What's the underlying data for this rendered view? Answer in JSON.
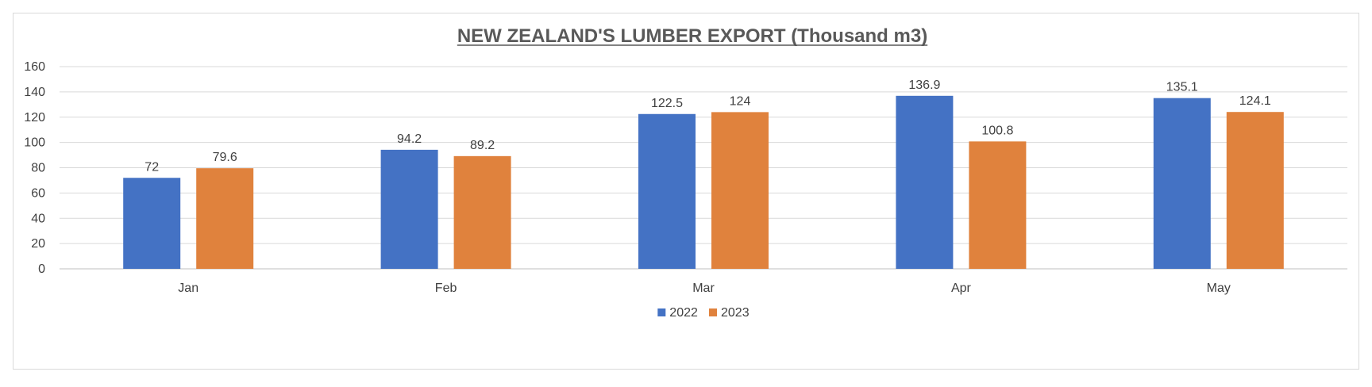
{
  "chart_data": {
    "type": "bar",
    "title": "NEW ZEALAND'S LUMBER EXPORT (Thousand m3)",
    "xlabel": "",
    "ylabel": "",
    "categories": [
      "Jan",
      "Feb",
      "Mar",
      "Apr",
      "May"
    ],
    "series": [
      {
        "name": "2022",
        "color": "#4472C4",
        "values": [
          72,
          94.2,
          122.5,
          136.9,
          135.1
        ]
      },
      {
        "name": "2023",
        "color": "#E0823D",
        "values": [
          79.6,
          89.2,
          124,
          100.8,
          124.1
        ]
      }
    ],
    "ylim": [
      0,
      160
    ],
    "yticks": [
      0,
      20,
      40,
      60,
      80,
      100,
      120,
      140,
      160
    ],
    "grid": true,
    "legend_position": "bottom-center",
    "data_labels": true
  }
}
